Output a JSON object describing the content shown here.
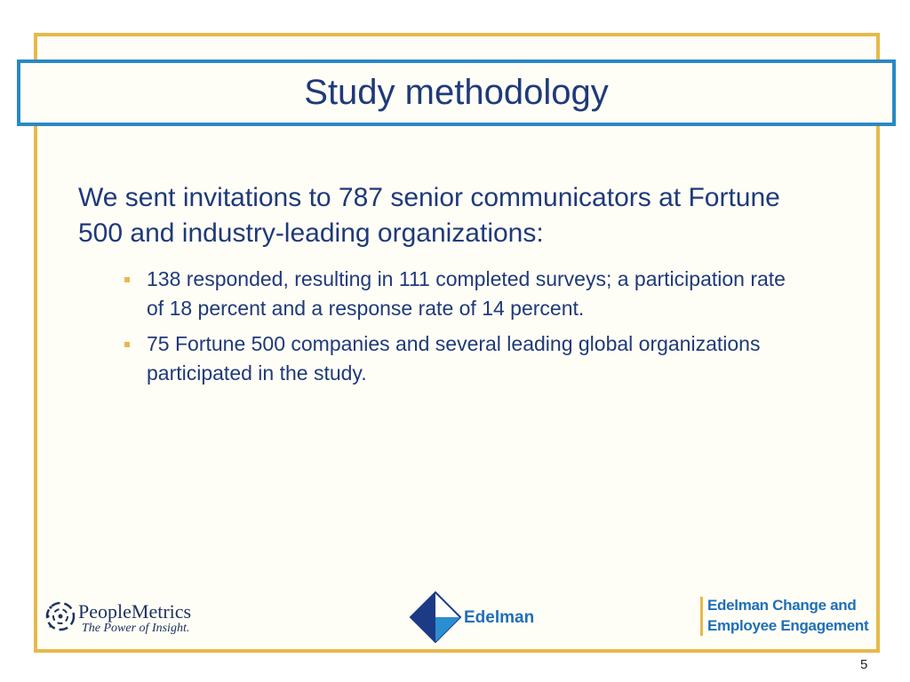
{
  "slide": {
    "title": "Study methodology",
    "intro": "We sent invitations to 787 senior communicators at Fortune 500 and industry-leading organizations:",
    "bullets": [
      "138 responded, resulting in 111 completed surveys; a participation rate of 18 percent and a response rate of 14 percent.",
      "75 Fortune 500 companies and several leading global organizations participated in the study."
    ],
    "page_number": "5"
  },
  "logos": {
    "peoplemetrics": {
      "name": "PeopleMetrics",
      "tagline": "The Power of Insight."
    },
    "edelman": {
      "name": "Edelman"
    },
    "edelman_change": {
      "line1": "Edelman Change and",
      "line2": "Employee Engagement"
    }
  },
  "colors": {
    "frame": "#e7b94a",
    "title_border": "#2a89c4",
    "text": "#1f3a7a",
    "brand_blue": "#1e6fb8"
  }
}
